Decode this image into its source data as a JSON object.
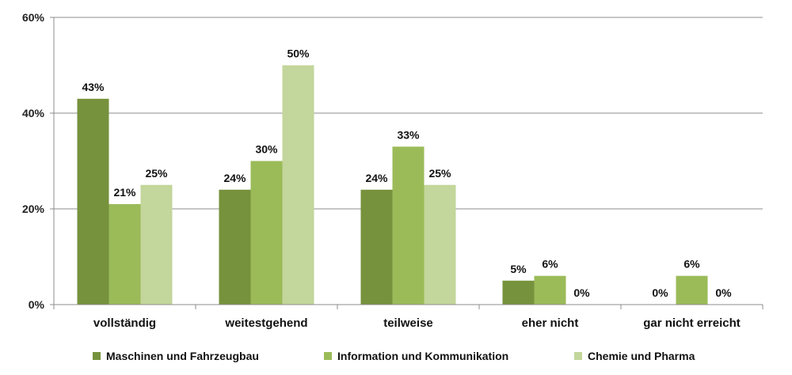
{
  "chart_data": {
    "type": "bar",
    "title": "",
    "xlabel": "",
    "ylabel": "",
    "ylim": [
      0,
      60
    ],
    "yticks": [
      "0%",
      "20%",
      "40%",
      "60%"
    ],
    "ytick_values": [
      0,
      20,
      40,
      60
    ],
    "grid": true,
    "legend_position": "bottom",
    "categories": [
      "vollständig",
      "weitestgehend",
      "teilweise",
      "eher nicht",
      "gar nicht erreicht"
    ],
    "series": [
      {
        "name": "Maschinen und Fahrzeugbau",
        "color": "#76923c",
        "values": [
          43,
          24,
          24,
          5,
          0
        ],
        "labels": [
          "43%",
          "24%",
          "24%",
          "5%",
          "0%"
        ]
      },
      {
        "name": "Information und Kommunikation",
        "color": "#9bbb59",
        "values": [
          21,
          30,
          33,
          6,
          6
        ],
        "labels": [
          "21%",
          "30%",
          "33%",
          "6%",
          "6%"
        ]
      },
      {
        "name": "Chemie und Pharma",
        "color": "#c3d69b",
        "values": [
          25,
          50,
          25,
          0,
          0
        ],
        "labels": [
          "25%",
          "50%",
          "25%",
          "0%",
          "0%"
        ]
      }
    ]
  }
}
